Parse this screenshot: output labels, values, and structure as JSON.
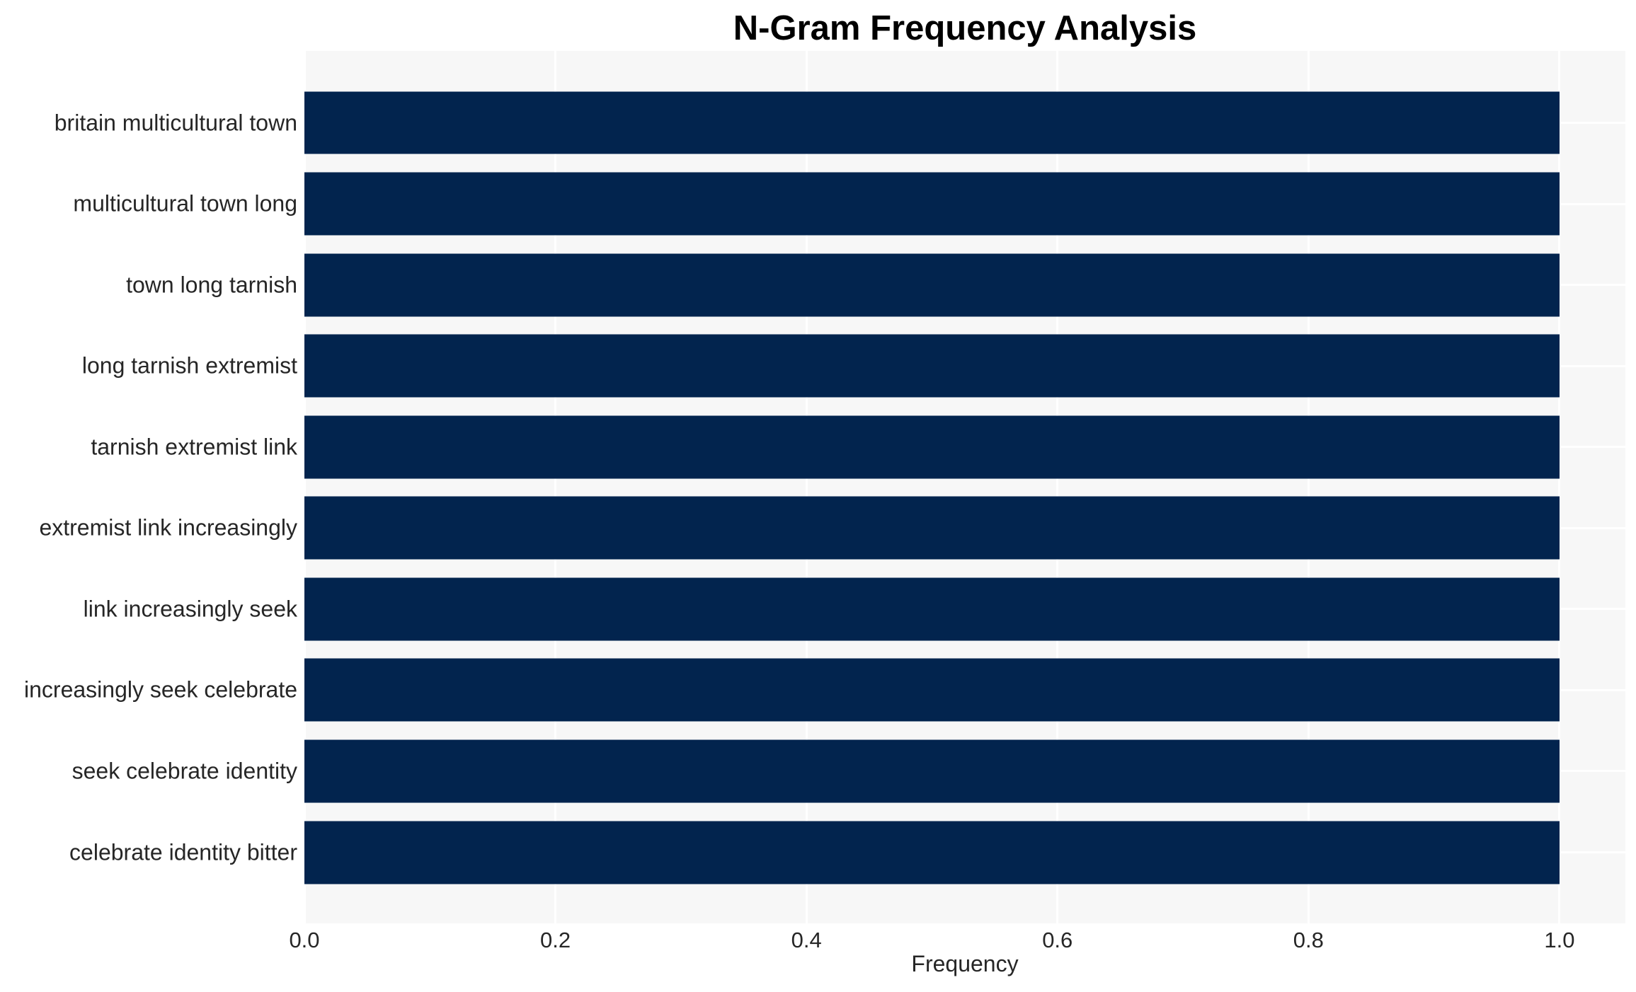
{
  "chart_data": {
    "type": "bar",
    "orientation": "horizontal",
    "title": "N-Gram Frequency Analysis",
    "xlabel": "Frequency",
    "ylabel": "",
    "categories": [
      "britain multicultural town",
      "multicultural town long",
      "town long tarnish",
      "long tarnish extremist",
      "tarnish extremist link",
      "extremist link increasingly",
      "link increasingly seek",
      "increasingly seek celebrate",
      "seek celebrate identity",
      "celebrate identity bitter"
    ],
    "values": [
      1.0,
      1.0,
      1.0,
      1.0,
      1.0,
      1.0,
      1.0,
      1.0,
      1.0,
      1.0
    ],
    "x_ticks": [
      0.0,
      0.2,
      0.4,
      0.6,
      0.8,
      1.0
    ],
    "x_tick_labels": [
      "0.0",
      "0.2",
      "0.4",
      "0.6",
      "0.8",
      "1.0"
    ],
    "xlim": [
      0.0,
      1.0525
    ],
    "grid": "white gridlines on light gray panel, vertical at x ticks and horizontal at category centers",
    "legend": "none",
    "colors": {
      "bar": "#02244e",
      "plot_background": "#f7f7f7",
      "figure_background": "#ffffff",
      "gridline": "#ffffff",
      "title_text": "#000000",
      "axis_text": "#262626"
    }
  }
}
